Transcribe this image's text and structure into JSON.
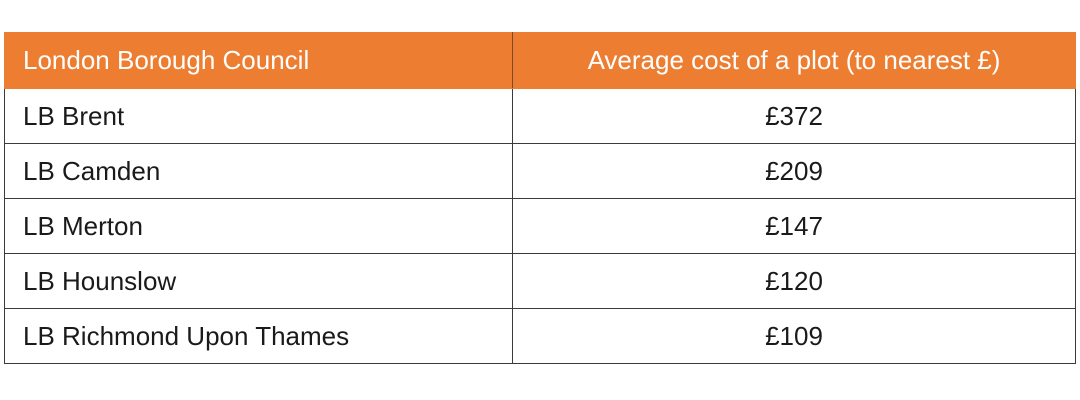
{
  "table": {
    "header": [
      "London Borough Council",
      "Average cost of a plot (to nearest £)"
    ],
    "rows": [
      [
        "LB Brent",
        "£372"
      ],
      [
        "LB Camden",
        "£209"
      ],
      [
        "LB Merton",
        "£147"
      ],
      [
        "LB Hounslow",
        "£120"
      ],
      [
        "LB Richmond Upon Thames",
        "£109"
      ]
    ]
  }
}
